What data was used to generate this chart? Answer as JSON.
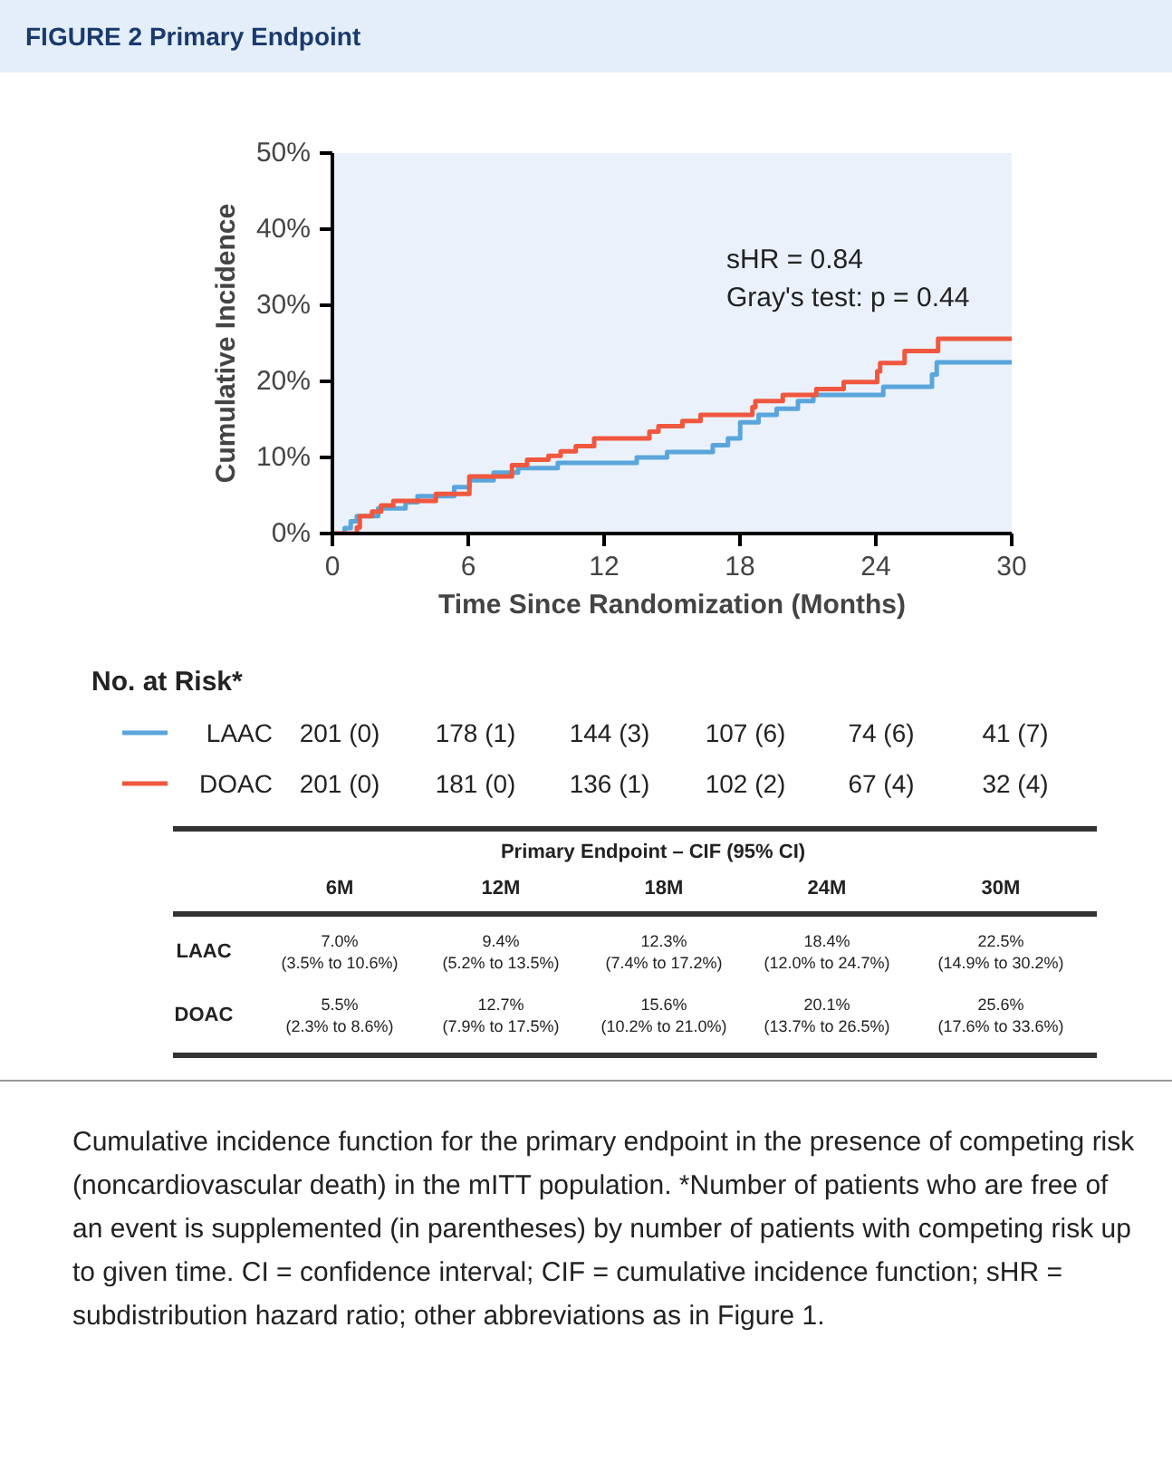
{
  "chart_data": {
    "type": "step",
    "title": "FIGURE 2 Primary Endpoint",
    "xlabel": "Time Since Randomization (Months)",
    "ylabel": "Cumulative Incidence",
    "xlim": [
      0,
      30
    ],
    "xticks": [
      0,
      6,
      12,
      18,
      24,
      30
    ],
    "ylim": [
      0,
      50
    ],
    "yticks": [
      {
        "value": 0,
        "label": "0%"
      },
      {
        "value": 10,
        "label": "10%"
      },
      {
        "value": 20,
        "label": "20%"
      },
      {
        "value": 30,
        "label": "30%"
      },
      {
        "value": 40,
        "label": "40%"
      },
      {
        "value": 50,
        "label": "50%"
      }
    ],
    "grid": false,
    "legend": "bottom",
    "series": [
      {
        "name": "LAAC",
        "color": "#5aa5dc",
        "x": [
          0,
          0.54,
          0.81,
          1.08,
          2.02,
          3.23,
          3.76,
          5.38,
          6.05,
          7.12,
          8.2,
          9.95,
          13.44,
          14.78,
          16.8,
          17.47,
          18.01,
          18.82,
          19.62,
          20.56,
          21.24,
          24.33,
          26.48,
          26.69,
          30
        ],
        "values": [
          0,
          0.7,
          1.6,
          2.3,
          3.3,
          4.1,
          4.9,
          6.1,
          7.0,
          8.0,
          8.6,
          9.3,
          10.0,
          10.7,
          11.6,
          12.5,
          14.6,
          15.6,
          16.4,
          17.4,
          18.2,
          19.3,
          20.9,
          22.5,
          22.5
        ]
      },
      {
        "name": "DOAC",
        "color": "#f0573f",
        "x": [
          0,
          1.08,
          1.21,
          1.75,
          2.15,
          2.69,
          4.57,
          6.05,
          7.93,
          8.6,
          9.54,
          10.08,
          10.75,
          11.56,
          14.0,
          14.4,
          15.46,
          16.26,
          18.55,
          18.68,
          19.89,
          21.37,
          22.58,
          24.06,
          24.19,
          25.27,
          26.75,
          30
        ],
        "values": [
          0,
          0.8,
          2.3,
          2.9,
          3.7,
          4.3,
          5.2,
          7.5,
          9.0,
          9.7,
          10.2,
          10.8,
          11.5,
          12.5,
          13.4,
          14.1,
          14.8,
          15.6,
          16.6,
          17.4,
          18.2,
          19.0,
          19.9,
          21.3,
          22.4,
          24.0,
          25.6,
          25.6
        ]
      }
    ],
    "annotations": [
      "sHR = 0.84",
      "Gray's test: p = 0.44",
      "No. at Risk*",
      "201 (0)",
      "178 (1)",
      "144 (3)",
      "107 (6)",
      "74 (6)",
      "41 (7)",
      "201 (0)",
      "181 (0)",
      "136 (1)",
      "102 (2)",
      "67 (4)",
      "32 (4)",
      "Primary Endpoint – CIF (95% CI)",
      "6M",
      "12M",
      "18M",
      "24M",
      "30M",
      "7.0%",
      "9.4%",
      "12.3%",
      "18.4%",
      "22.5%",
      "(3.5% to 10.6%)",
      "(5.2% to 13.5%)",
      "(7.4% to 17.2%)",
      "(12.0% to 24.7%)",
      "(14.9% to 30.2%)",
      "5.5%",
      "12.7%",
      "15.6%",
      "20.1%",
      "25.6%",
      "(2.3% to 8.6%)",
      "(7.9% to 17.5%)",
      "(10.2% to 21.0%)",
      "(13.7% to 26.5%)",
      "(17.6% to 33.6%)",
      "Cumulative incidence function for the primary endpoint in the presence of competing risk (noncardiovascular death) in the mITT population. *Number of patients who are free of an event is supplemented (in parentheses) by number of patients with competing risk up to given time. CI = confidence interval; CIF = cumulative incidence function; sHR = subdistribution hazard ratio; other abbreviations as in Figure 1."
    ]
  }
}
